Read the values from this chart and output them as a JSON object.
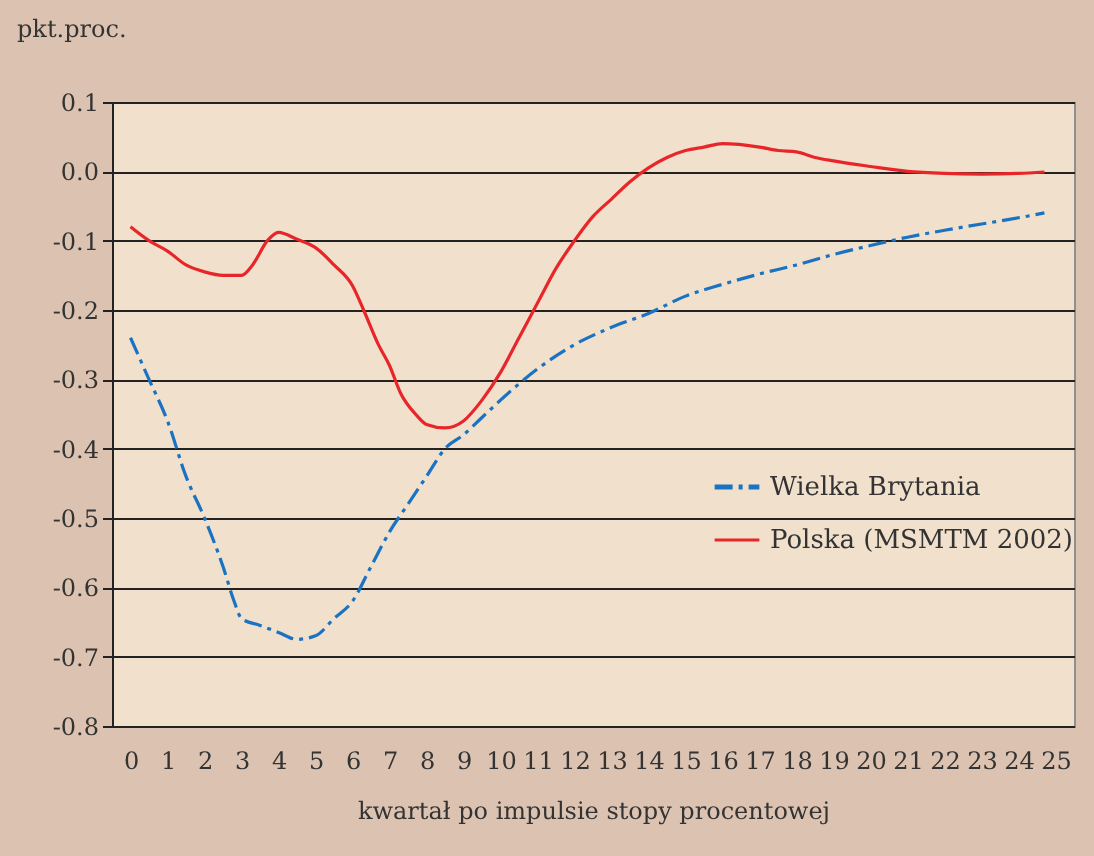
{
  "chart_data": {
    "type": "line",
    "ylabel": "pkt.proc.",
    "xlabel": "kwartał po impulsie stopy procentowej",
    "xlim": [
      -0.5,
      25.5
    ],
    "xticks": [
      0,
      1,
      2,
      3,
      4,
      5,
      6,
      7,
      8,
      9,
      10,
      11,
      12,
      13,
      14,
      15,
      16,
      17,
      18,
      19,
      20,
      21,
      22,
      23,
      24,
      25
    ],
    "ylim": [
      -0.8,
      0.1
    ],
    "yticks": [
      -0.8,
      -0.7,
      -0.6,
      -0.5,
      -0.4,
      -0.3,
      -0.2,
      -0.1,
      {
        "value": 0,
        "label": "0.0"
      },
      0.1
    ],
    "grid": "y",
    "legend": "right",
    "series": [
      {
        "name": "Wielka Brytania",
        "color": "#1a72c2",
        "line_style": "dashed",
        "x": [
          0,
          0.5,
          1,
          1.5,
          2,
          2.5,
          2.8,
          3,
          3.5,
          4,
          4.5,
          5,
          5.5,
          6,
          6.5,
          7,
          7.5,
          8,
          8.5,
          9,
          9.5,
          10,
          11,
          12,
          13,
          14,
          15,
          16,
          17,
          18,
          19,
          20,
          21,
          22,
          23,
          24,
          24.7
        ],
        "values": [
          -0.24,
          -0.3,
          -0.36,
          -0.44,
          -0.5,
          -0.57,
          -0.62,
          -0.645,
          -0.655,
          -0.665,
          -0.675,
          -0.67,
          -0.645,
          -0.62,
          -0.57,
          -0.52,
          -0.48,
          -0.44,
          -0.4,
          -0.38,
          -0.355,
          -0.33,
          -0.285,
          -0.25,
          -0.225,
          -0.205,
          -0.18,
          -0.163,
          -0.148,
          -0.135,
          -0.12,
          -0.107,
          -0.095,
          -0.085,
          -0.076,
          -0.067,
          -0.06
        ]
      },
      {
        "name": "Polska (MSMTM 2002)",
        "color": "#e8262a",
        "line_style": "solid",
        "x": [
          0,
          0.5,
          1,
          1.5,
          2,
          2.5,
          3,
          3.3,
          3.7,
          4,
          4.5,
          5,
          5.5,
          6,
          6.3,
          6.7,
          7,
          7.3,
          7.7,
          8,
          8.5,
          9,
          9.5,
          10,
          10.5,
          11,
          11.5,
          12,
          12.5,
          13,
          13.5,
          14,
          14.5,
          15,
          15.5,
          16,
          17,
          17.5,
          18,
          18.5,
          19,
          20,
          21,
          22,
          23,
          24,
          24.7
        ],
        "values": [
          -0.08,
          -0.1,
          -0.115,
          -0.135,
          -0.145,
          -0.15,
          -0.15,
          -0.135,
          -0.1,
          -0.088,
          -0.098,
          -0.11,
          -0.135,
          -0.165,
          -0.2,
          -0.25,
          -0.28,
          -0.32,
          -0.35,
          -0.365,
          -0.37,
          -0.36,
          -0.33,
          -0.29,
          -0.24,
          -0.19,
          -0.14,
          -0.1,
          -0.065,
          -0.04,
          -0.015,
          0.005,
          0.02,
          0.03,
          0.035,
          0.04,
          0.035,
          0.03,
          0.028,
          0.02,
          0.015,
          0.007,
          0,
          -0.003,
          -0.004,
          -0.003,
          -0.001
        ]
      }
    ]
  }
}
